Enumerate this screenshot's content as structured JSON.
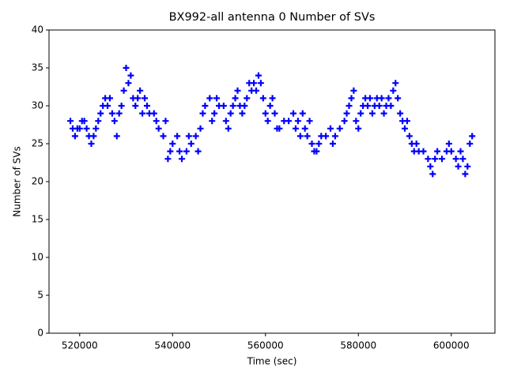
{
  "chart_data": {
    "type": "scatter",
    "title": "BX992-all antenna 0 Number of SVs",
    "x_label": "Time (sec)",
    "y_label": "Number of SVs",
    "marker": "+",
    "color": "#0000ff",
    "x": [
      518000,
      518500,
      519000,
      519500,
      520000,
      520500,
      521000,
      521500,
      522000,
      522500,
      523000,
      523500,
      524000,
      524500,
      525000,
      525500,
      526000,
      526500,
      527000,
      527500,
      528000,
      528500,
      529000,
      529500,
      530000,
      530500,
      531000,
      531500,
      532000,
      532500,
      533000,
      533500,
      534000,
      534500,
      535000,
      536000,
      536500,
      537000,
      538000,
      538500,
      539000,
      539500,
      540000,
      541000,
      541500,
      542000,
      543000,
      543500,
      544000,
      545000,
      545500,
      546000,
      546500,
      547000,
      548000,
      548500,
      549000,
      549500,
      550000,
      551000,
      551500,
      552000,
      552500,
      553000,
      553500,
      554000,
      554500,
      555000,
      555500,
      556000,
      556500,
      557000,
      557500,
      558000,
      558500,
      559000,
      559500,
      560000,
      560500,
      561000,
      561500,
      562000,
      562500,
      563000,
      564000,
      565000,
      566000,
      566500,
      567000,
      567500,
      568000,
      568500,
      569000,
      569500,
      570000,
      570500,
      571000,
      571500,
      572000,
      573000,
      574000,
      574500,
      575000,
      576000,
      577000,
      577500,
      578000,
      578500,
      579000,
      579500,
      580000,
      580500,
      581000,
      581500,
      582000,
      582500,
      583000,
      583500,
      584000,
      584500,
      585000,
      585500,
      586000,
      586500,
      587000,
      587500,
      588000,
      588500,
      589000,
      589500,
      590000,
      590500,
      591000,
      591500,
      592000,
      592500,
      593000,
      594000,
      595000,
      595500,
      596000,
      596500,
      597000,
      598000,
      599000,
      599500,
      600000,
      601000,
      601500,
      602000,
      602500,
      603000,
      603500,
      604000,
      604500
    ],
    "y": [
      28,
      27,
      26,
      27,
      27,
      28,
      28,
      27,
      26,
      25,
      26,
      27,
      28,
      29,
      30,
      31,
      30,
      31,
      29,
      28,
      26,
      29,
      30,
      32,
      35,
      33,
      34,
      31,
      30,
      31,
      32,
      29,
      31,
      30,
      29,
      29,
      28,
      27,
      26,
      28,
      23,
      24,
      25,
      26,
      24,
      23,
      24,
      26,
      25,
      26,
      24,
      27,
      29,
      30,
      31,
      28,
      29,
      31,
      30,
      30,
      28,
      27,
      29,
      30,
      31,
      32,
      30,
      29,
      30,
      31,
      33,
      32,
      33,
      32,
      34,
      33,
      31,
      29,
      28,
      30,
      31,
      29,
      27,
      27,
      28,
      28,
      29,
      27,
      28,
      26,
      29,
      27,
      26,
      28,
      25,
      24,
      24,
      25,
      26,
      26,
      27,
      25,
      26,
      27,
      28,
      29,
      30,
      31,
      32,
      28,
      27,
      29,
      30,
      31,
      30,
      31,
      29,
      30,
      31,
      30,
      31,
      29,
      30,
      31,
      30,
      32,
      33,
      31,
      29,
      28,
      27,
      28,
      26,
      25,
      24,
      25,
      24,
      24,
      23,
      22,
      21,
      23,
      24,
      23,
      24,
      25,
      24,
      23,
      22,
      24,
      23,
      21,
      22,
      25,
      26
    ],
    "xlim": [
      513400,
      609400
    ],
    "ylim": [
      0,
      40
    ],
    "xticks": [
      520000,
      540000,
      560000,
      580000,
      600000
    ],
    "yticks": [
      0,
      5,
      10,
      15,
      20,
      25,
      30,
      35,
      40
    ]
  }
}
